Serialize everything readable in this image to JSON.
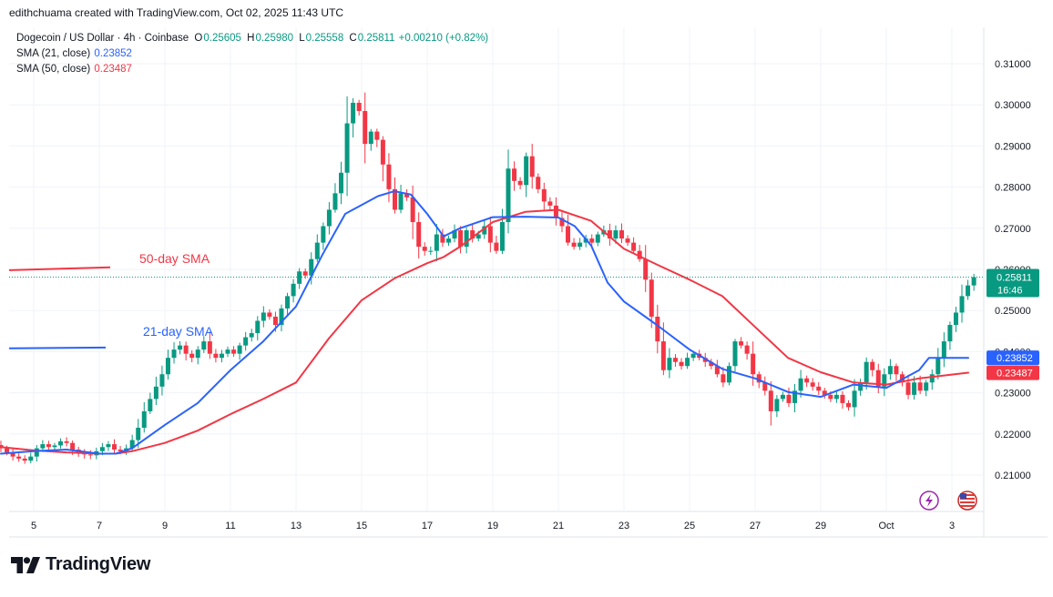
{
  "header": {
    "credit": "edithchuama created with TradingView.com, Oct 02, 2025 11:43 UTC"
  },
  "legend": {
    "symbol": "Dogecoin / US Dollar · 4h · Coinbase",
    "open_k": "O",
    "open": "0.25605",
    "high_k": "H",
    "high": "0.25980",
    "low_k": "L",
    "low": "0.25558",
    "close_k": "C",
    "close": "0.25811",
    "change": "+0.00210 (+0.82%)",
    "sma21_label": "SMA (21, close)",
    "sma21_value": "0.23852",
    "sma50_label": "SMA (50, close)",
    "sma50_value": "0.23487"
  },
  "annotations": {
    "sma50": "50-day SMA",
    "sma21": "21-day SMA"
  },
  "price_tag": {
    "price": "0.25811",
    "countdown": "16:46"
  },
  "sma_tags": {
    "sma21": "0.23852",
    "sma50": "0.23487"
  },
  "brand": {
    "name": "TradingView"
  },
  "colors": {
    "up": "#089981",
    "down": "#f23645",
    "sma21": "#2962ff",
    "sma50": "#f23645",
    "grid": "#f0f3fa"
  },
  "icons": [
    "lightning-icon",
    "us-flag-icon",
    "tradingview-logo-icon"
  ],
  "chart_data": {
    "type": "candlestick",
    "title": "Dogecoin / US Dollar · 4h · Coinbase",
    "ylim": [
      0.202,
      0.316
    ],
    "y_ticks": [
      "0.31000",
      "0.30000",
      "0.29000",
      "0.28000",
      "0.27000",
      "0.26000",
      "0.25000",
      "0.24000",
      "0.23000",
      "0.22000",
      "0.21000"
    ],
    "x_ticks": [
      {
        "label": "5",
        "day": 5
      },
      {
        "label": "7",
        "day": 7
      },
      {
        "label": "9",
        "day": 9
      },
      {
        "label": "11",
        "day": 11
      },
      {
        "label": "13",
        "day": 13
      },
      {
        "label": "15",
        "day": 15
      },
      {
        "label": "17",
        "day": 17
      },
      {
        "label": "19",
        "day": 19
      },
      {
        "label": "21",
        "day": 21
      },
      {
        "label": "23",
        "day": 23
      },
      {
        "label": "25",
        "day": 25
      },
      {
        "label": "27",
        "day": 27
      },
      {
        "label": "29",
        "day": 29
      },
      {
        "label": "Oct",
        "day": 31
      },
      {
        "label": "3",
        "day": 33
      }
    ],
    "candle_days": [
      4.0,
      33.67
    ],
    "closes": [
      0.2165,
      0.2155,
      0.2145,
      0.214,
      0.2135,
      0.2145,
      0.2165,
      0.2175,
      0.2168,
      0.2172,
      0.2182,
      0.2178,
      0.2162,
      0.2155,
      0.215,
      0.2148,
      0.2158,
      0.2168,
      0.2175,
      0.2162,
      0.2158,
      0.2165,
      0.2185,
      0.2215,
      0.2255,
      0.2285,
      0.2315,
      0.2345,
      0.2385,
      0.2405,
      0.2415,
      0.2395,
      0.2385,
      0.2405,
      0.2425,
      0.2395,
      0.2385,
      0.2395,
      0.2405,
      0.2395,
      0.2415,
      0.2435,
      0.2445,
      0.2475,
      0.2495,
      0.2485,
      0.2465,
      0.2505,
      0.2535,
      0.2565,
      0.2595,
      0.2585,
      0.2625,
      0.2665,
      0.2705,
      0.2745,
      0.2785,
      0.2835,
      0.2955,
      0.3005,
      0.2985,
      0.2905,
      0.2935,
      0.2915,
      0.2855,
      0.2795,
      0.2745,
      0.2785,
      0.2775,
      0.2715,
      0.2655,
      0.2645,
      0.2645,
      0.2685,
      0.2665,
      0.2675,
      0.2695,
      0.2655,
      0.2695,
      0.2675,
      0.2685,
      0.2705,
      0.2665,
      0.2645,
      0.2715,
      0.2845,
      0.2815,
      0.2805,
      0.2875,
      0.2825,
      0.2795,
      0.2765,
      0.2755,
      0.2725,
      0.2705,
      0.2665,
      0.2655,
      0.2665,
      0.2675,
      0.2665,
      0.2685,
      0.2695,
      0.2675,
      0.2695,
      0.2675,
      0.2665,
      0.2645,
      0.2625,
      0.2575,
      0.2485,
      0.2425,
      0.2355,
      0.2385,
      0.2375,
      0.2365,
      0.2385,
      0.2395,
      0.2385,
      0.2375,
      0.2365,
      0.2345,
      0.2325,
      0.2365,
      0.2425,
      0.2415,
      0.2395,
      0.2345,
      0.2325,
      0.2305,
      0.2255,
      0.2285,
      0.2295,
      0.2275,
      0.2305,
      0.2335,
      0.2325,
      0.2315,
      0.2305,
      0.2295,
      0.2285,
      0.2295,
      0.2275,
      0.2265,
      0.2305,
      0.2325,
      0.2375,
      0.2355,
      0.2315,
      0.2345,
      0.2365,
      0.2345,
      0.2325,
      0.2295,
      0.2325,
      0.2305,
      0.2325,
      0.2345,
      0.2385,
      0.2425,
      0.2465,
      0.2495,
      0.2535,
      0.2561,
      0.2581
    ],
    "series": [
      {
        "name": "SMA (21, close)",
        "color": "#2962ff",
        "x": [
          4,
          5,
          6,
          7,
          7.5,
          8,
          9,
          10,
          11,
          12,
          13,
          13.8,
          14.5,
          15.5,
          16,
          16.5,
          17,
          17.5,
          18,
          19,
          20,
          21,
          21.5,
          22,
          22.5,
          23,
          24,
          25,
          26,
          27,
          28,
          29,
          30,
          31,
          32,
          32.3,
          33.5
        ],
        "y": [
          0.2152,
          0.2158,
          0.2162,
          0.2152,
          0.2152,
          0.2165,
          0.2222,
          0.2275,
          0.2355,
          0.2425,
          0.251,
          0.2635,
          0.2735,
          0.2778,
          0.279,
          0.2782,
          0.2735,
          0.268,
          0.27,
          0.2727,
          0.2728,
          0.2726,
          0.2705,
          0.2658,
          0.2568,
          0.2522,
          0.2465,
          0.2405,
          0.2358,
          0.2335,
          0.2302,
          0.229,
          0.232,
          0.2312,
          0.2355,
          0.2385,
          0.2385
        ]
      },
      {
        "name": "SMA (50, close)",
        "color": "#f23645",
        "x": [
          4,
          5,
          6,
          7,
          7.5,
          8,
          9,
          10,
          11,
          12,
          13,
          14,
          15,
          16,
          17,
          17.5,
          18,
          19,
          20,
          21,
          22,
          23,
          24,
          25,
          26,
          27,
          28,
          29,
          30,
          31,
          32,
          33.5
        ],
        "y": [
          0.2168,
          0.216,
          0.2155,
          0.2152,
          0.2152,
          0.2158,
          0.2178,
          0.2208,
          0.2248,
          0.2285,
          0.2325,
          0.2432,
          0.2525,
          0.2578,
          0.2615,
          0.263,
          0.2655,
          0.2715,
          0.274,
          0.2745,
          0.2718,
          0.265,
          0.2612,
          0.2575,
          0.2535,
          0.246,
          0.2385,
          0.235,
          0.2325,
          0.232,
          0.2335,
          0.2349
        ]
      }
    ],
    "current": {
      "price": 0.25811,
      "sma21": 0.23852,
      "sma50": 0.23487
    }
  }
}
